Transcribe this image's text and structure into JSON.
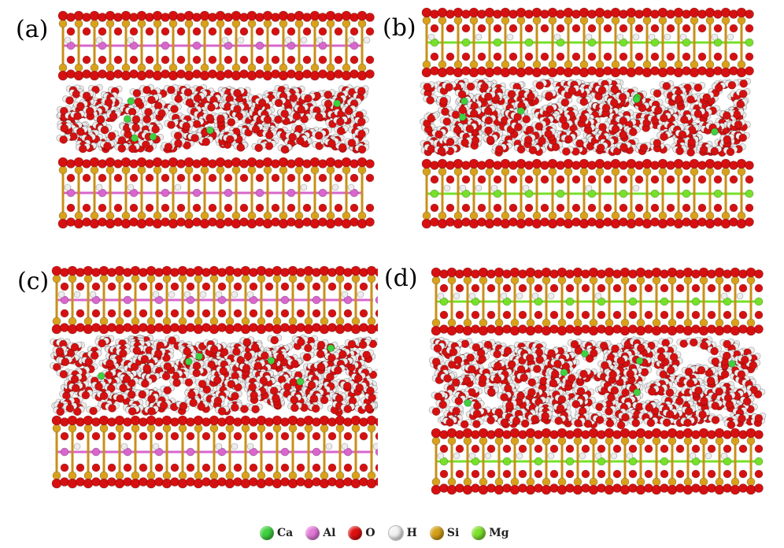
{
  "panels": [
    {
      "label": "(a)",
      "octahedral": "Al"
    },
    {
      "label": "(b)",
      "octahedral": "Mg"
    },
    {
      "label": "(c)",
      "octahedral": "Al"
    },
    {
      "label": "(d)",
      "octahedral": "Mg"
    }
  ],
  "legend": [
    {
      "symbol": "Ca",
      "color": "#3fd13f"
    },
    {
      "symbol": "Al",
      "color": "#e27ad8"
    },
    {
      "symbol": "O",
      "color": "#e01010"
    },
    {
      "symbol": "H",
      "color": "#f2f2f2"
    },
    {
      "symbol": "Si",
      "color": "#d4a017"
    },
    {
      "symbol": "Mg",
      "color": "#7ee02a"
    }
  ],
  "colors": {
    "O": "#d61010",
    "Si": "#d9a01a",
    "Al": "#d866cc",
    "Mg": "#77e02a",
    "H": "#ececec",
    "Ca": "#3fd13f"
  }
}
